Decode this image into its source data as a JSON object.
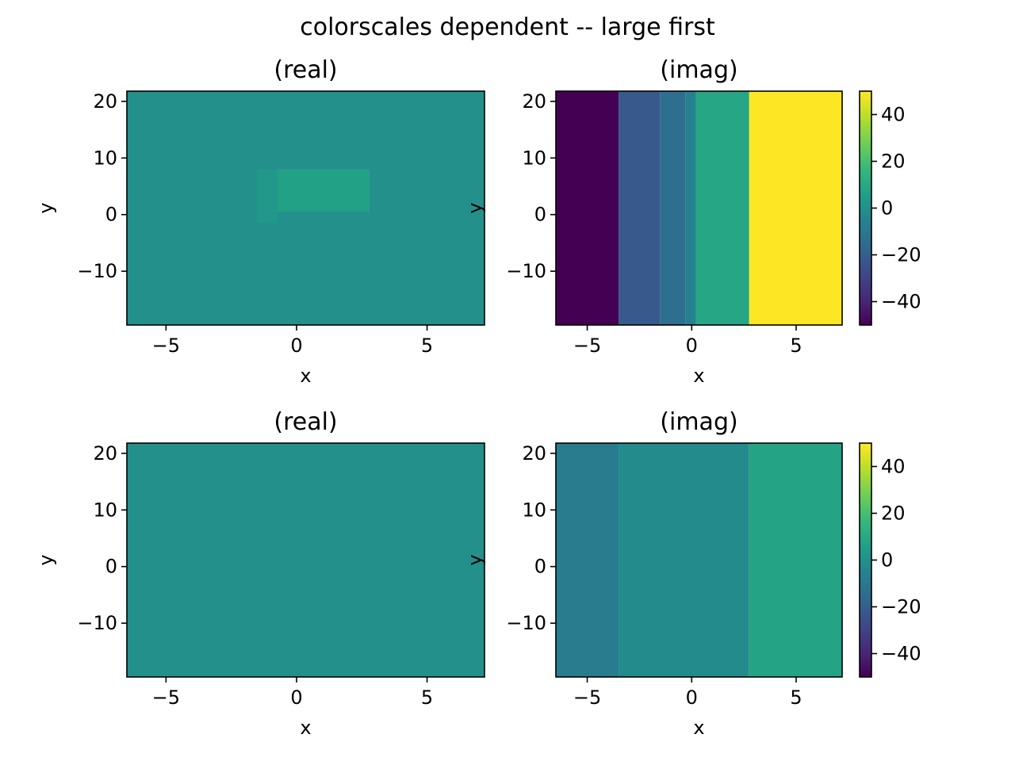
{
  "figure": {
    "title": "colorscales dependent -- large first"
  },
  "colors": {
    "viridis": [
      "#440154",
      "#482878",
      "#3e4989",
      "#31688e",
      "#26828e",
      "#1f9e89",
      "#35b779",
      "#6ece58",
      "#b5de2b",
      "#fde725"
    ]
  },
  "chart_data": [
    {
      "type": "heatmap",
      "title": "(real)",
      "xlabel": "x",
      "ylabel": "y",
      "xlim": [
        -6.5,
        7.2
      ],
      "ylim": [
        -19.5,
        21.8
      ],
      "xticks": [
        -5,
        0,
        5
      ],
      "yticks": [
        -10,
        0,
        10,
        20
      ],
      "color_range": [
        -50,
        50
      ],
      "colorbar": false,
      "background_value": 0,
      "cells": [
        {
          "x0": -1.5,
          "x1": -0.75,
          "y0": -1.5,
          "y1": 8.0,
          "value": 3
        },
        {
          "x0": -0.75,
          "x1": 2.8,
          "y0": 0.5,
          "y1": 8.0,
          "value": 7
        }
      ]
    },
    {
      "type": "heatmap",
      "title": "(imag)",
      "xlabel": "x",
      "ylabel": "y",
      "xlim": [
        -6.5,
        7.2
      ],
      "ylim": [
        -19.5,
        21.8
      ],
      "xticks": [
        -5,
        0,
        5
      ],
      "yticks": [
        -10,
        0,
        10,
        20
      ],
      "color_range": [
        -50,
        50
      ],
      "colorbar": true,
      "colorbar_ticks": [
        -40,
        -20,
        0,
        20,
        40
      ],
      "columns": [
        {
          "x0": -6.5,
          "x1": -3.5,
          "value": -50
        },
        {
          "x0": -3.5,
          "x1": -1.5,
          "value": -22
        },
        {
          "x0": -1.5,
          "x1": -0.3,
          "value": -14
        },
        {
          "x0": -0.3,
          "x1": 0.2,
          "value": -6
        },
        {
          "x0": 0.2,
          "x1": 2.75,
          "value": 9
        },
        {
          "x0": 2.75,
          "x1": 7.2,
          "value": 50
        }
      ]
    },
    {
      "type": "heatmap",
      "title": "(real)",
      "xlabel": "x",
      "ylabel": "y",
      "xlim": [
        -6.5,
        7.2
      ],
      "ylim": [
        -19.5,
        21.8
      ],
      "xticks": [
        -5,
        0,
        5
      ],
      "yticks": [
        -10,
        0,
        10,
        20
      ],
      "color_range": [
        -50,
        50
      ],
      "colorbar": false,
      "background_value": 0,
      "cells": []
    },
    {
      "type": "heatmap",
      "title": "(imag)",
      "xlabel": "x",
      "ylabel": "y",
      "xlim": [
        -6.5,
        7.2
      ],
      "ylim": [
        -19.5,
        21.8
      ],
      "xticks": [
        -5,
        0,
        5
      ],
      "yticks": [
        -10,
        0,
        10,
        20
      ],
      "color_range": [
        -50,
        50
      ],
      "colorbar": true,
      "colorbar_ticks": [
        -40,
        -20,
        0,
        20,
        40
      ],
      "columns": [
        {
          "x0": -6.5,
          "x1": -3.5,
          "value": -8
        },
        {
          "x0": -3.5,
          "x1": 2.75,
          "value": -2
        },
        {
          "x0": 2.75,
          "x1": 7.2,
          "value": 8
        }
      ]
    }
  ]
}
